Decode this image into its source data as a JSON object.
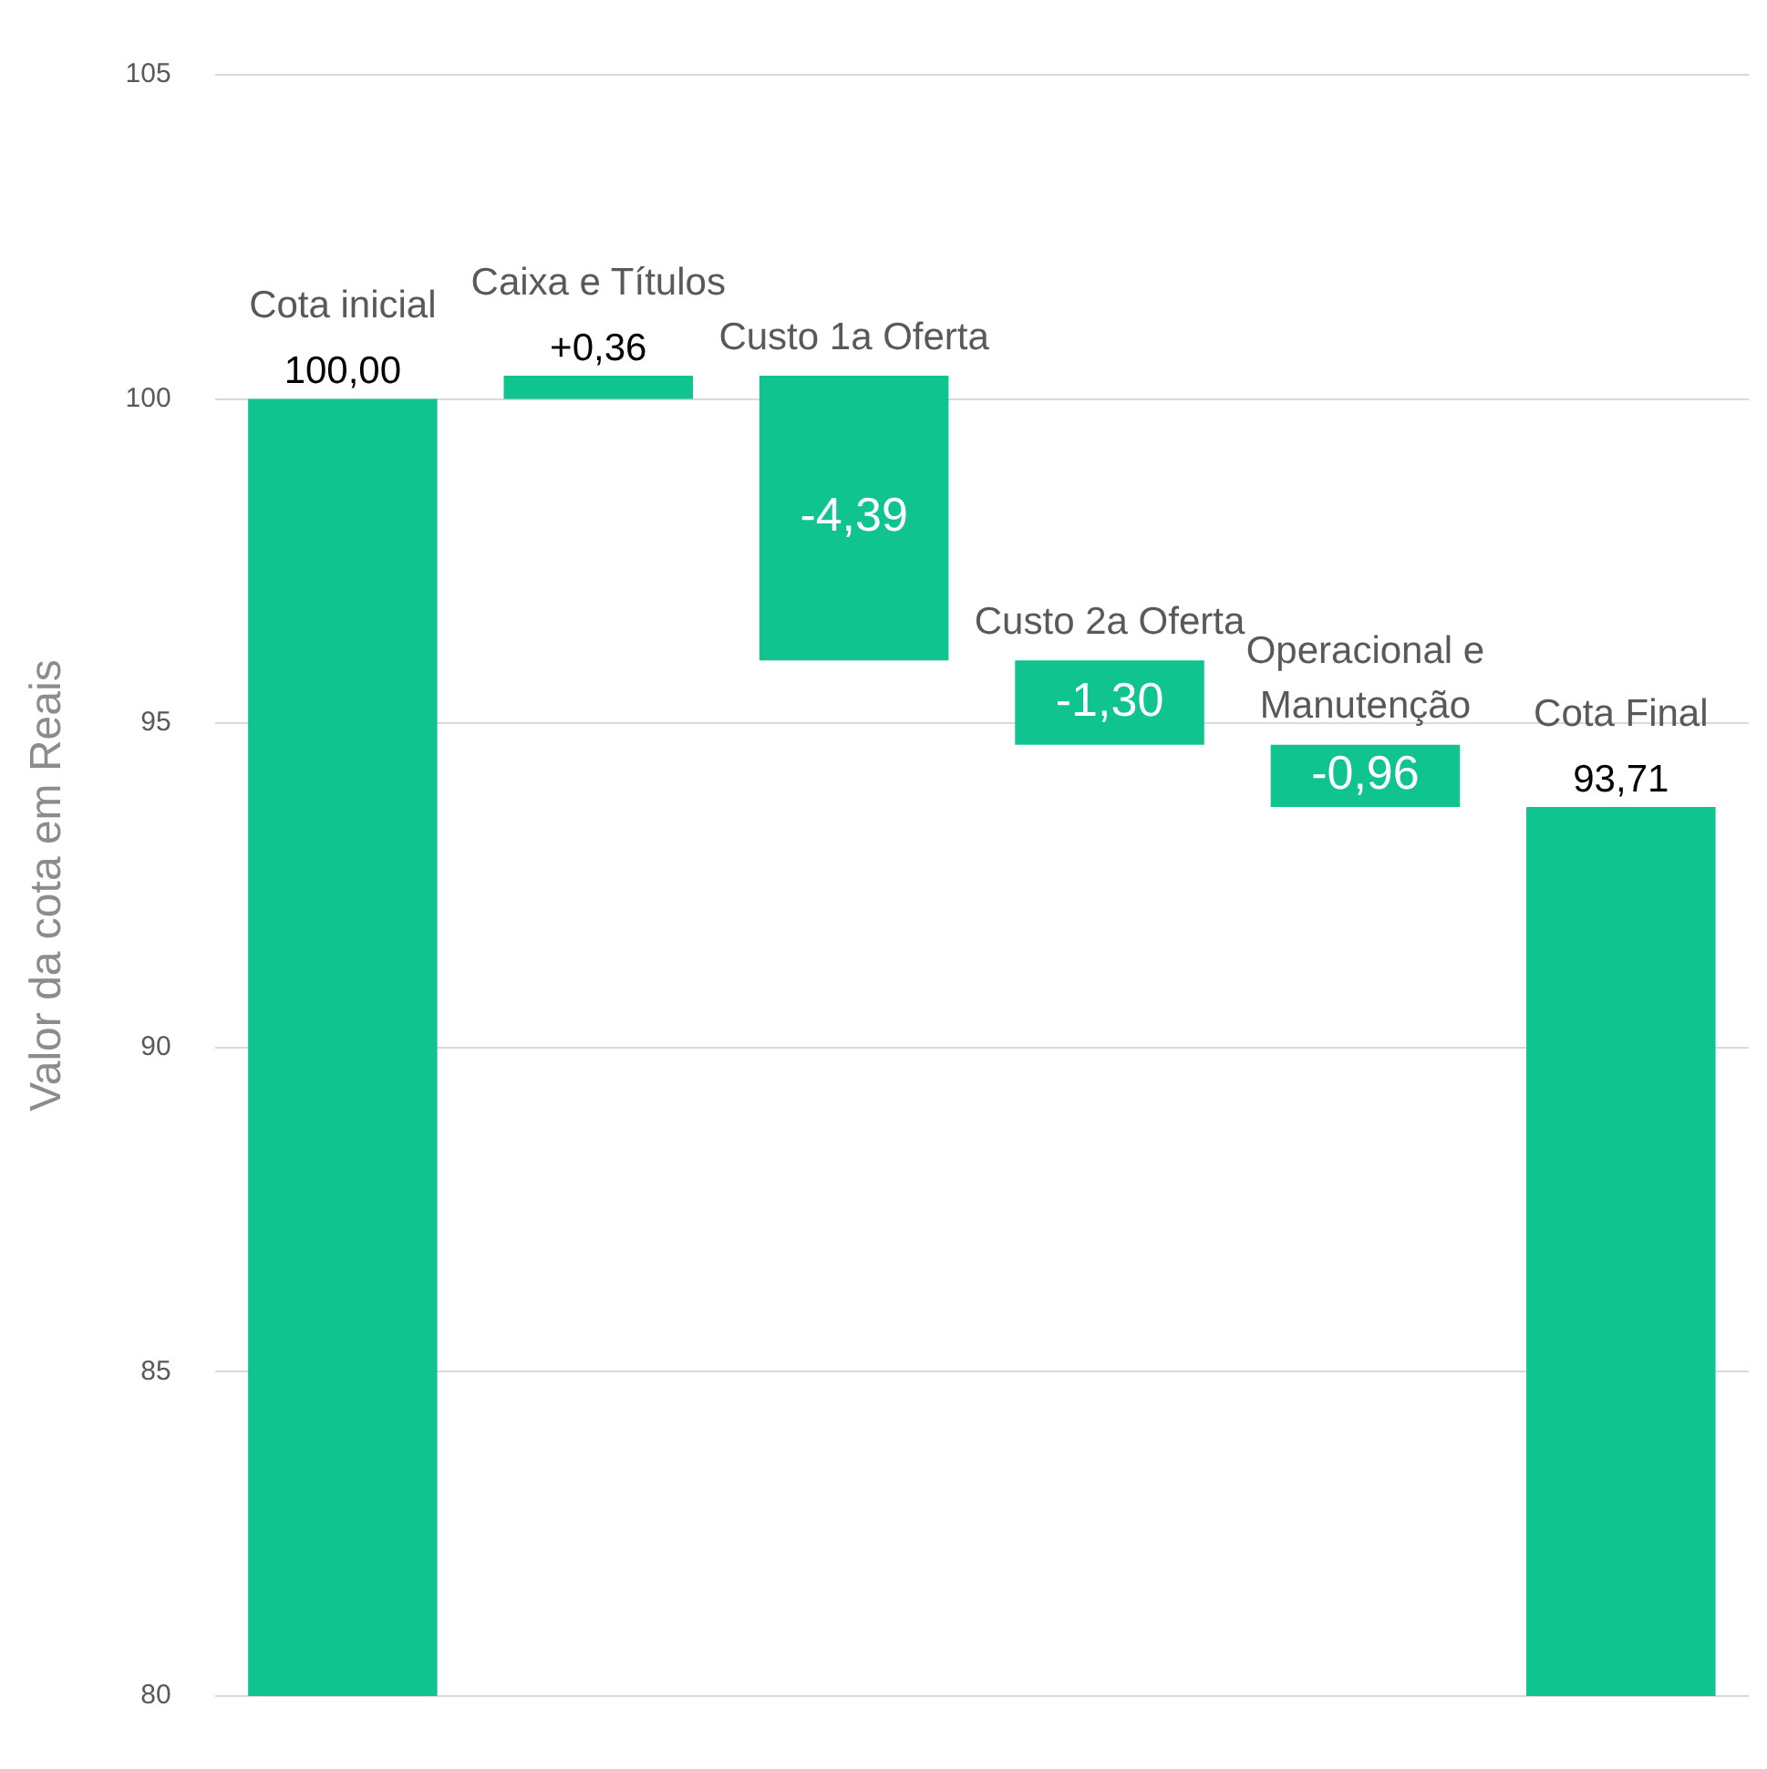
{
  "chart_data": {
    "type": "bar",
    "ylabel": "Valor da cota em Reais",
    "categories": [
      "Cota inicial",
      "Caixa e Títulos",
      "Custo 1a Oferta",
      "Custo 2a Oferta",
      "Operacional e Manutenção",
      "Cota Final"
    ],
    "values": [
      100,
      0.36,
      -4.39,
      -1.3,
      -0.96,
      93.71
    ],
    "base": [
      null,
      100,
      100.36,
      95.97,
      94.67,
      null
    ],
    "value_labels": [
      "100,00",
      "+0,36",
      "-4,39",
      "-1,30",
      "-0,96",
      "93,71"
    ],
    "color": "#10c490",
    "ylim": [
      80,
      105
    ],
    "yticks": [
      80,
      85,
      90,
      95,
      100,
      105
    ],
    "grid": "y"
  }
}
